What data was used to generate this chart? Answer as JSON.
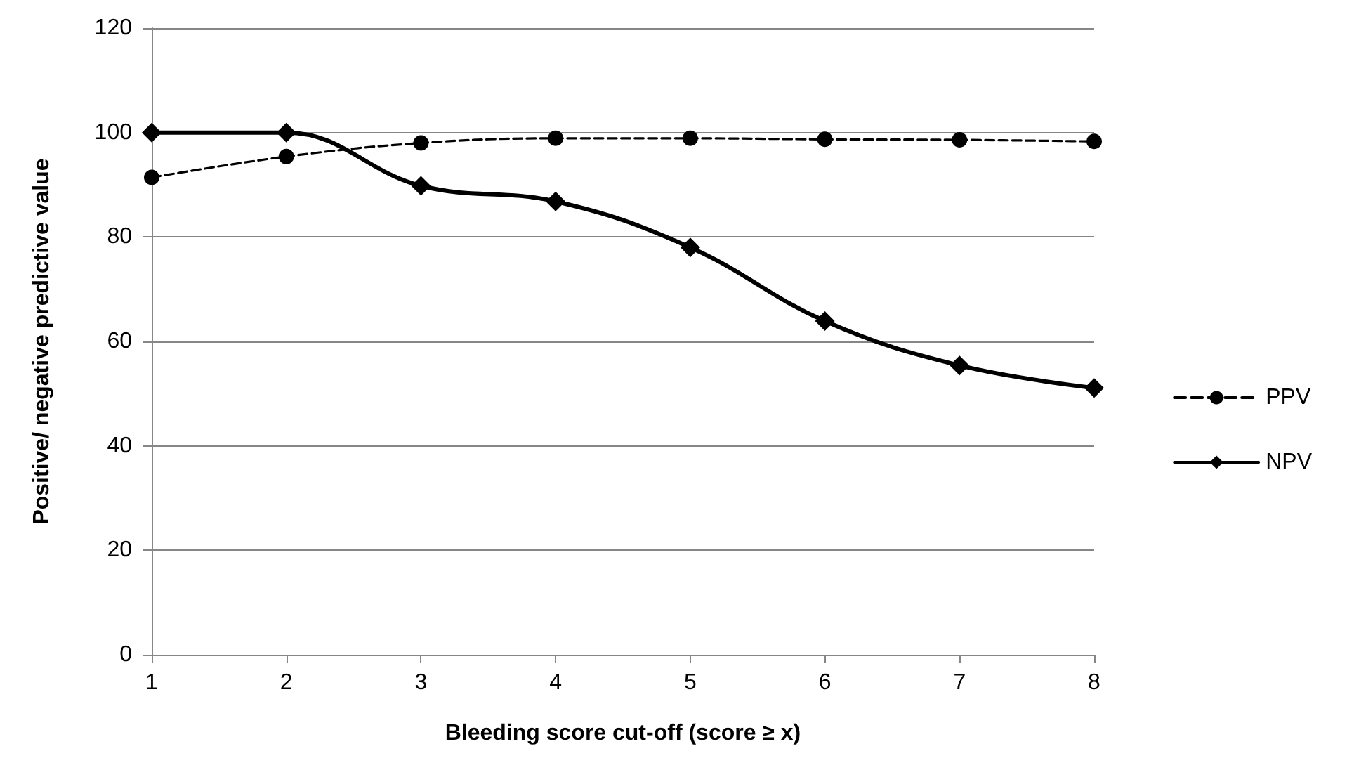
{
  "chart_data": {
    "type": "line",
    "xlabel": "Bleeding score cut-off (score ≥ x)",
    "ylabel": "Positive/ negative predictive value",
    "x": [
      1,
      2,
      3,
      4,
      5,
      6,
      7,
      8
    ],
    "series": [
      {
        "name": "PPV",
        "color": "#000000",
        "values": [
          91.4,
          95.4,
          98,
          98.9,
          98.9,
          98.7,
          98.6,
          98.3
        ],
        "marker": "circle",
        "line_style": "dashed"
      },
      {
        "name": "NPV",
        "color": "#000000",
        "values": [
          100,
          100,
          89.8,
          86.8,
          78,
          63.9,
          55.4,
          51.1
        ],
        "marker": "diamond",
        "line_style": "solid"
      }
    ],
    "xlim": [
      1,
      8
    ],
    "xticks": [
      1,
      2,
      3,
      4,
      5,
      6,
      7,
      8
    ],
    "ylim": [
      0,
      120
    ],
    "yticks": [
      0,
      20,
      40,
      60,
      80,
      100,
      120
    ],
    "grid": "y",
    "legend": "right"
  }
}
